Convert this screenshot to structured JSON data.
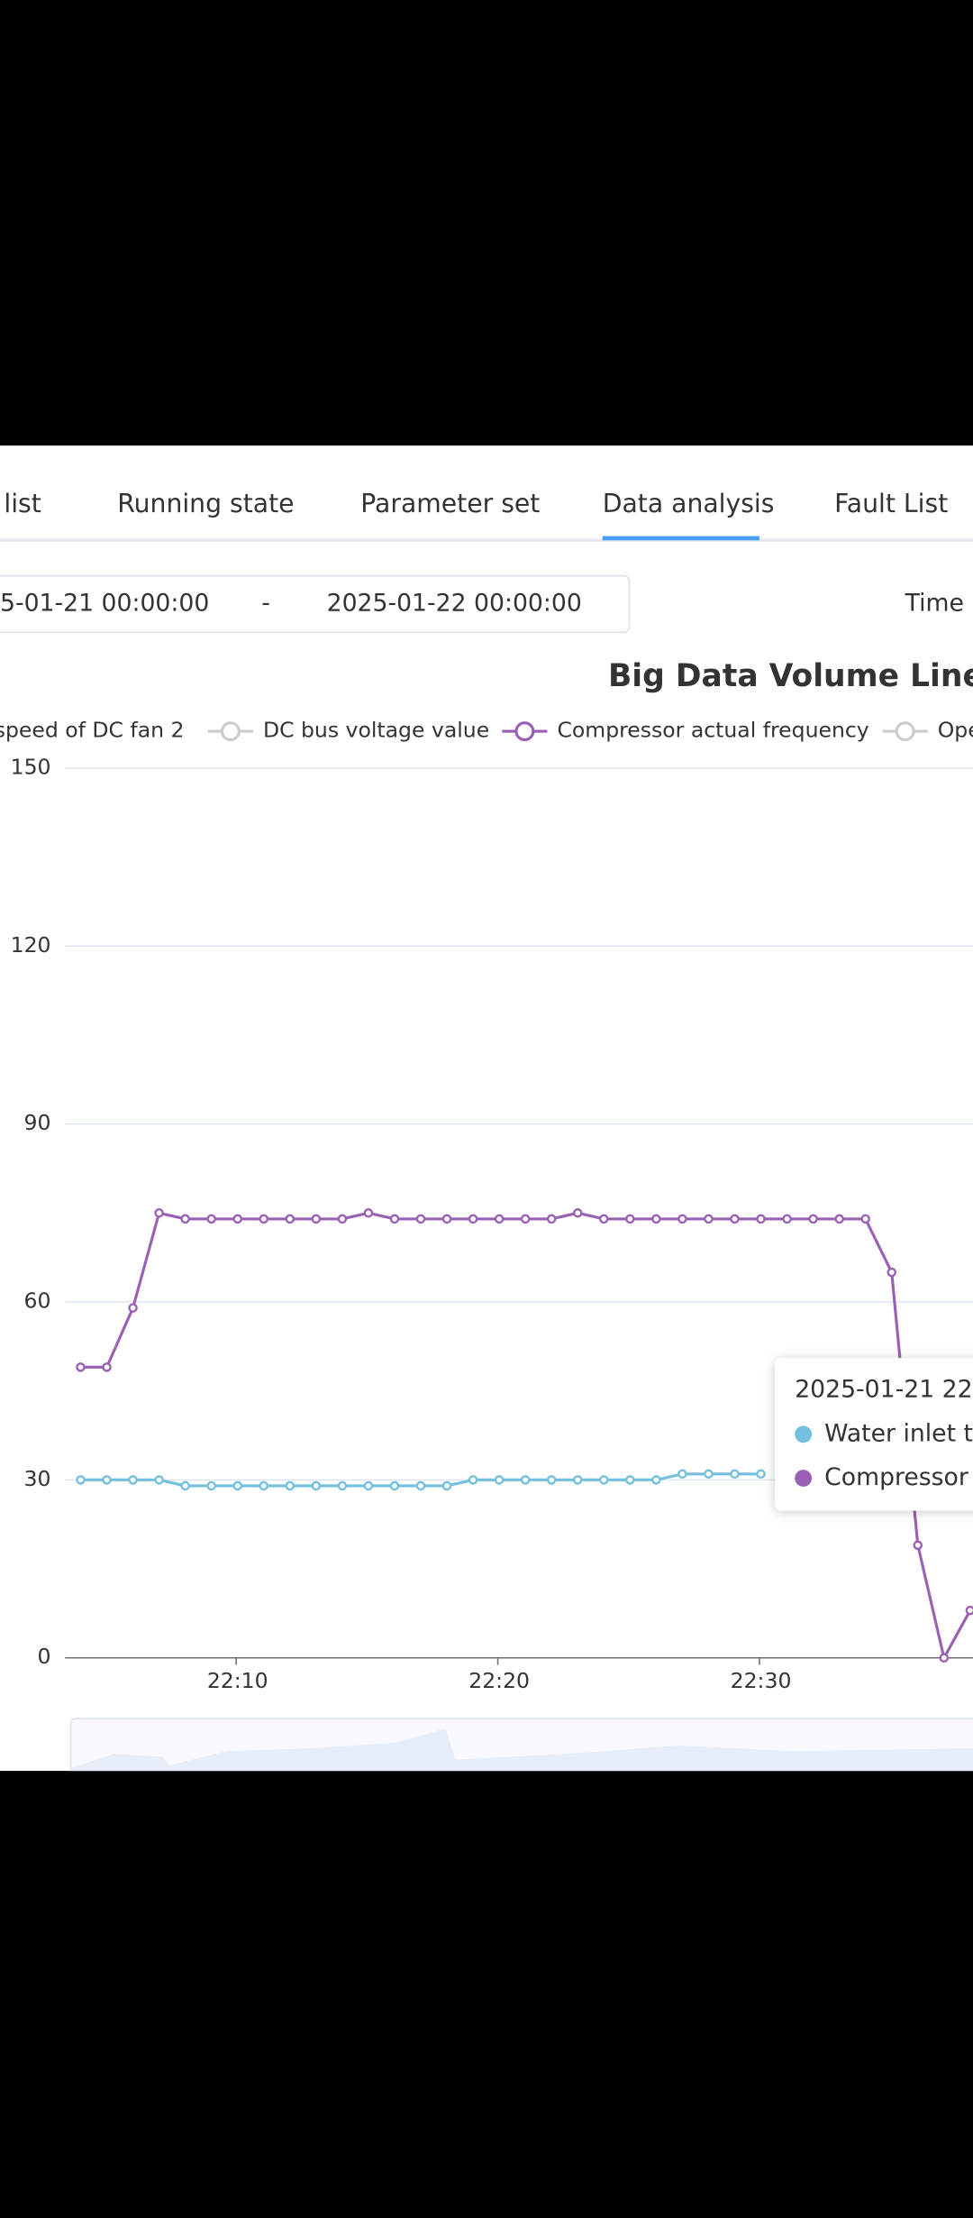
{
  "tabs": [
    "t list",
    "Running state",
    "Parameter set",
    "Data analysis",
    "Fault List"
  ],
  "date_range": {
    "start": "5-01-21 00:00:00",
    "separator": "-",
    "end": "2025-01-22 00:00:00",
    "label": "Time"
  },
  "chart_data": {
    "type": "line",
    "title": "Big Data Volume Line",
    "legend": [
      {
        "name": "speed of DC fan 2",
        "active": false
      },
      {
        "name": "DC bus voltage value",
        "active": false
      },
      {
        "name": "Compressor actual frequency",
        "active": true,
        "color": "#9a60b4"
      },
      {
        "name": "Ope",
        "active": false
      }
    ],
    "categories": [
      null,
      null,
      null,
      null,
      null,
      null,
      "22:10",
      null,
      null,
      null,
      null,
      null,
      null,
      null,
      null,
      null,
      "22:20",
      null,
      null,
      null,
      null,
      null,
      null,
      null,
      null,
      null,
      "22:30",
      null,
      null,
      null,
      null,
      null,
      null,
      null,
      null
    ],
    "series": [
      {
        "name": "Water inlet t",
        "color": "#73c0de",
        "values": [
          30,
          30,
          30,
          30,
          29,
          29,
          29,
          29,
          29,
          29,
          29,
          29,
          29,
          29,
          29,
          30,
          30,
          30,
          30,
          30,
          30,
          30,
          30,
          31,
          31,
          31,
          31,
          null,
          null,
          null,
          null,
          null,
          null,
          null,
          null
        ]
      },
      {
        "name": "Compressor actual frequency",
        "color": "#9a60b4",
        "values": [
          49,
          49,
          59,
          75,
          74,
          74,
          74,
          74,
          74,
          74,
          74,
          75,
          74,
          74,
          74,
          74,
          74,
          74,
          74,
          75,
          74,
          74,
          74,
          74,
          74,
          74,
          74,
          74,
          74,
          74,
          74,
          65,
          19,
          0,
          8
        ]
      }
    ],
    "ylim": [
      0,
      150
    ],
    "yticks": [
      0,
      30,
      60,
      90,
      120,
      150
    ],
    "grid": true,
    "tooltip": {
      "title": "2025-01-21 22",
      "rows": [
        "Water inlet t",
        "Compressor"
      ]
    }
  }
}
